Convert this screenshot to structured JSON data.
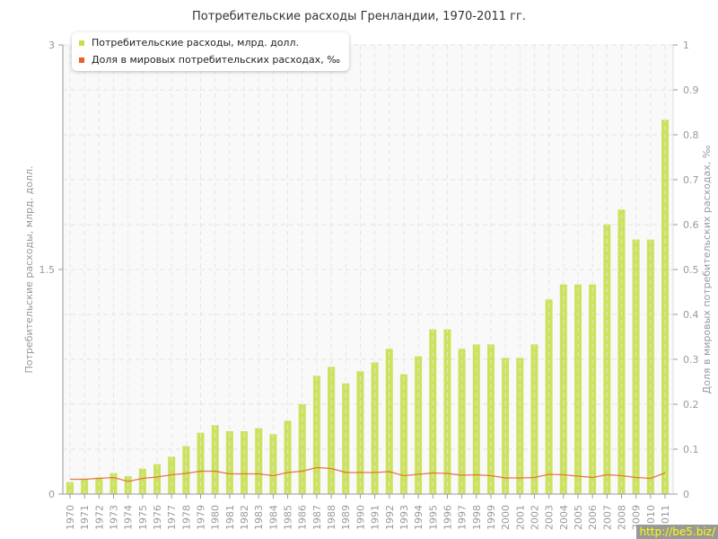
{
  "chart_data": {
    "type": "bar",
    "title": "Потребительские расходы Гренландии, 1970-2011 гг.",
    "ylabel": "Потребительские расходы, млрд. долл.",
    "y2label": "Доля в мировых потребительских расходах, ‰",
    "ylim": [
      0,
      3
    ],
    "y2lim": [
      0,
      1
    ],
    "yticks": [
      "0",
      "1.5",
      "3"
    ],
    "y2ticks": [
      "0",
      "0.1",
      "0.2",
      "0.3",
      "0.4",
      "0.5",
      "0.6",
      "0.7",
      "0.8",
      "0.9",
      "1"
    ],
    "grid": true,
    "legend_position": "top-left",
    "categories": [
      "1970",
      "1971",
      "1972",
      "1973",
      "1974",
      "1975",
      "1976",
      "1977",
      "1978",
      "1979",
      "1980",
      "1981",
      "1982",
      "1983",
      "1984",
      "1985",
      "1986",
      "1987",
      "1988",
      "1989",
      "1990",
      "1991",
      "1992",
      "1993",
      "1994",
      "1995",
      "1996",
      "1997",
      "1998",
      "1999",
      "2000",
      "2001",
      "2002",
      "2003",
      "2004",
      "2005",
      "2006",
      "2007",
      "2008",
      "2009",
      "2010",
      "2011"
    ],
    "series": [
      {
        "name": "Потребительские расходы, млрд. долл.",
        "type": "bar",
        "axis": "left",
        "color": "#c5e04a",
        "values": [
          0.08,
          0.1,
          0.11,
          0.14,
          0.12,
          0.17,
          0.2,
          0.25,
          0.32,
          0.41,
          0.46,
          0.42,
          0.42,
          0.44,
          0.4,
          0.49,
          0.6,
          0.79,
          0.85,
          0.74,
          0.82,
          0.88,
          0.97,
          0.8,
          0.92,
          1.1,
          1.1,
          0.97,
          1.0,
          1.0,
          0.91,
          0.91,
          1.0,
          1.3,
          1.4,
          1.4,
          1.4,
          1.8,
          1.9,
          1.7,
          1.7,
          2.5
        ]
      },
      {
        "name": "Доля в мировых потребительских расходах, ‰",
        "type": "line",
        "axis": "right",
        "color": "#e2622c",
        "values": [
          0.033,
          0.033,
          0.035,
          0.037,
          0.028,
          0.035,
          0.038,
          0.043,
          0.046,
          0.051,
          0.051,
          0.045,
          0.045,
          0.045,
          0.041,
          0.048,
          0.051,
          0.059,
          0.057,
          0.048,
          0.048,
          0.048,
          0.05,
          0.041,
          0.044,
          0.047,
          0.046,
          0.042,
          0.043,
          0.041,
          0.036,
          0.036,
          0.037,
          0.044,
          0.043,
          0.04,
          0.037,
          0.043,
          0.041,
          0.037,
          0.035,
          0.047
        ]
      }
    ]
  },
  "watermark": "http://be5.biz/"
}
